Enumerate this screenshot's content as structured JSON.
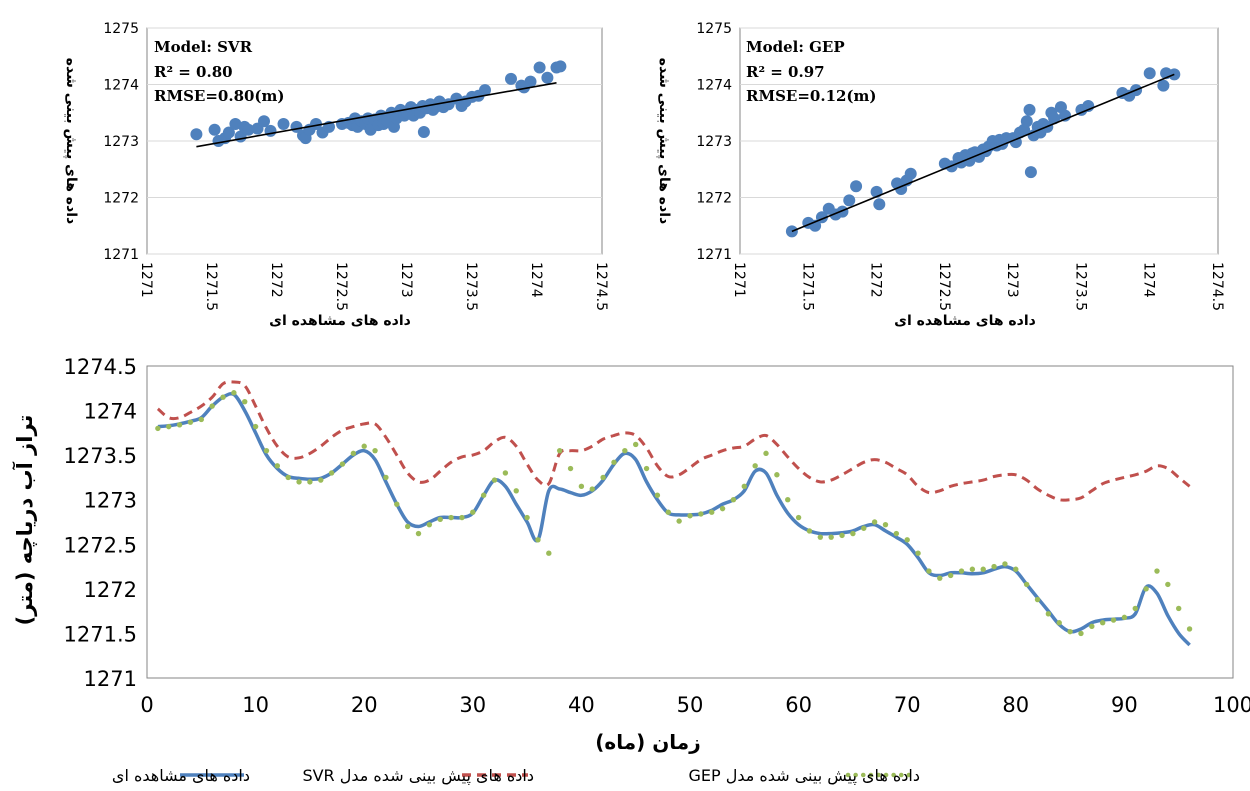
{
  "chart_data": [
    {
      "type": "scatter",
      "title": "",
      "xlabel": "داده های مشاهده ای",
      "ylabel": "داده های پیش بینی شده",
      "annotations": {
        "model": "Model: SVR",
        "r2": "R² = 0.80",
        "rmse": "RMSE=0.80(m)"
      },
      "xlim": [
        1271,
        1274.5
      ],
      "ylim": [
        1271,
        1275
      ],
      "x_ticks": [
        "1271",
        "1271.5",
        "1272",
        "1272.5",
        "1273",
        "1273.5",
        "1274",
        "1274.5"
      ],
      "y_ticks": [
        "1271",
        "1272",
        "1273",
        "1274",
        "1275"
      ],
      "point_color": "#4f81bd",
      "trendline": [
        [
          1271.38,
          1272.9
        ],
        [
          1274.15,
          1274.03
        ]
      ],
      "points": [
        [
          1271.38,
          1273.12
        ],
        [
          1271.52,
          1273.2
        ],
        [
          1271.55,
          1273.0
        ],
        [
          1271.6,
          1273.05
        ],
        [
          1271.63,
          1273.15
        ],
        [
          1271.68,
          1273.3
        ],
        [
          1271.72,
          1273.08
        ],
        [
          1271.75,
          1273.25
        ],
        [
          1271.78,
          1273.2
        ],
        [
          1271.85,
          1273.22
        ],
        [
          1271.9,
          1273.35
        ],
        [
          1271.95,
          1273.18
        ],
        [
          1272.05,
          1273.3
        ],
        [
          1272.15,
          1273.25
        ],
        [
          1272.2,
          1273.1
        ],
        [
          1272.22,
          1273.05
        ],
        [
          1272.25,
          1273.2
        ],
        [
          1272.3,
          1273.3
        ],
        [
          1272.35,
          1273.15
        ],
        [
          1272.4,
          1273.25
        ],
        [
          1272.5,
          1273.3
        ],
        [
          1272.55,
          1273.32
        ],
        [
          1272.58,
          1273.28
        ],
        [
          1272.6,
          1273.4
        ],
        [
          1272.62,
          1273.25
        ],
        [
          1272.65,
          1273.35
        ],
        [
          1272.68,
          1273.3
        ],
        [
          1272.7,
          1273.4
        ],
        [
          1272.72,
          1273.2
        ],
        [
          1272.75,
          1273.38
        ],
        [
          1272.78,
          1273.28
        ],
        [
          1272.8,
          1273.45
        ],
        [
          1272.82,
          1273.3
        ],
        [
          1272.85,
          1273.35
        ],
        [
          1272.88,
          1273.5
        ],
        [
          1272.9,
          1273.25
        ],
        [
          1272.92,
          1273.4
        ],
        [
          1272.95,
          1273.55
        ],
        [
          1272.98,
          1273.45
        ],
        [
          1273.0,
          1273.5
        ],
        [
          1273.03,
          1273.6
        ],
        [
          1273.05,
          1273.45
        ],
        [
          1273.08,
          1273.55
        ],
        [
          1273.1,
          1273.5
        ],
        [
          1273.12,
          1273.62
        ],
        [
          1273.15,
          1273.58
        ],
        [
          1273.18,
          1273.65
        ],
        [
          1273.2,
          1273.55
        ],
        [
          1273.22,
          1273.6
        ],
        [
          1273.25,
          1273.7
        ],
        [
          1273.28,
          1273.6
        ],
        [
          1273.32,
          1273.65
        ],
        [
          1273.38,
          1273.75
        ],
        [
          1273.42,
          1273.62
        ],
        [
          1273.45,
          1273.7
        ],
        [
          1273.5,
          1273.78
        ],
        [
          1273.55,
          1273.8
        ],
        [
          1273.6,
          1273.9
        ],
        [
          1273.13,
          1273.16
        ],
        [
          1273.8,
          1274.1
        ],
        [
          1273.88,
          1273.98
        ],
        [
          1273.9,
          1273.95
        ],
        [
          1273.95,
          1274.05
        ],
        [
          1274.02,
          1274.3
        ],
        [
          1274.08,
          1274.12
        ],
        [
          1274.15,
          1274.3
        ],
        [
          1274.18,
          1274.32
        ]
      ]
    },
    {
      "type": "scatter",
      "title": "",
      "xlabel": "داده های مشاهده ای",
      "ylabel": "داده های پیش بینی شده",
      "annotations": {
        "model": "Model: GEP",
        "r2": "R² = 0.97",
        "rmse": "RMSE=0.12(m)"
      },
      "xlim": [
        1271,
        1274.5
      ],
      "ylim": [
        1271,
        1275
      ],
      "x_ticks": [
        "1271",
        "1271.5",
        "1272",
        "1272.5",
        "1273",
        "1273.5",
        "1274",
        "1274.5"
      ],
      "y_ticks": [
        "1271",
        "1272",
        "1273",
        "1274",
        "1275"
      ],
      "point_color": "#4f81bd",
      "trendline": [
        [
          1271.38,
          1271.4
        ],
        [
          1274.18,
          1274.18
        ]
      ],
      "points": [
        [
          1271.38,
          1271.4
        ],
        [
          1271.5,
          1271.55
        ],
        [
          1271.55,
          1271.5
        ],
        [
          1271.6,
          1271.65
        ],
        [
          1271.65,
          1271.8
        ],
        [
          1271.7,
          1271.7
        ],
        [
          1271.75,
          1271.75
        ],
        [
          1271.8,
          1271.95
        ],
        [
          1271.85,
          1272.2
        ],
        [
          1272.0,
          1272.1
        ],
        [
          1272.02,
          1271.88
        ],
        [
          1272.15,
          1272.25
        ],
        [
          1272.18,
          1272.15
        ],
        [
          1272.22,
          1272.3
        ],
        [
          1272.25,
          1272.42
        ],
        [
          1272.5,
          1272.6
        ],
        [
          1272.55,
          1272.55
        ],
        [
          1272.6,
          1272.7
        ],
        [
          1272.62,
          1272.62
        ],
        [
          1272.65,
          1272.75
        ],
        [
          1272.68,
          1272.65
        ],
        [
          1272.7,
          1272.78
        ],
        [
          1272.72,
          1272.8
        ],
        [
          1272.75,
          1272.72
        ],
        [
          1272.78,
          1272.85
        ],
        [
          1272.8,
          1272.82
        ],
        [
          1272.82,
          1272.9
        ],
        [
          1272.85,
          1273.0
        ],
        [
          1272.88,
          1272.92
        ],
        [
          1272.9,
          1273.02
        ],
        [
          1272.92,
          1272.95
        ],
        [
          1272.95,
          1273.05
        ],
        [
          1273.0,
          1273.05
        ],
        [
          1273.02,
          1272.98
        ],
        [
          1273.05,
          1273.15
        ],
        [
          1273.08,
          1273.2
        ],
        [
          1273.1,
          1273.35
        ],
        [
          1273.12,
          1273.55
        ],
        [
          1273.13,
          1272.45
        ],
        [
          1273.15,
          1273.1
        ],
        [
          1273.18,
          1273.25
        ],
        [
          1273.2,
          1273.15
        ],
        [
          1273.22,
          1273.3
        ],
        [
          1273.25,
          1273.25
        ],
        [
          1273.28,
          1273.5
        ],
        [
          1273.3,
          1273.4
        ],
        [
          1273.35,
          1273.6
        ],
        [
          1273.38,
          1273.45
        ],
        [
          1273.5,
          1273.55
        ],
        [
          1273.55,
          1273.62
        ],
        [
          1273.8,
          1273.85
        ],
        [
          1273.85,
          1273.8
        ],
        [
          1273.9,
          1273.9
        ],
        [
          1274.0,
          1274.2
        ],
        [
          1274.1,
          1273.98
        ],
        [
          1274.12,
          1274.2
        ],
        [
          1274.18,
          1274.18
        ]
      ]
    },
    {
      "type": "line",
      "title": "",
      "xlabel": "زمان (ماه)",
      "ylabel": "تراز آب دریاچه (متر)",
      "xlim": [
        0,
        100
      ],
      "ylim": [
        1271,
        1274.5
      ],
      "x_ticks": [
        "0",
        "10",
        "20",
        "30",
        "40",
        "50",
        "60",
        "70",
        "80",
        "90",
        "100"
      ],
      "y_ticks": [
        "1271",
        "1271.5",
        "1272",
        "1272.5",
        "1273",
        "1273.5",
        "1274",
        "1274.5"
      ],
      "x": [
        1,
        2,
        3,
        4,
        5,
        6,
        7,
        8,
        9,
        10,
        11,
        12,
        13,
        14,
        15,
        16,
        17,
        18,
        19,
        20,
        21,
        22,
        23,
        24,
        25,
        26,
        27,
        28,
        29,
        30,
        31,
        32,
        33,
        34,
        35,
        36,
        37,
        38,
        39,
        40,
        41,
        42,
        43,
        44,
        45,
        46,
        47,
        48,
        49,
        50,
        51,
        52,
        53,
        54,
        55,
        56,
        57,
        58,
        59,
        60,
        61,
        62,
        63,
        64,
        65,
        66,
        67,
        68,
        69,
        70,
        71,
        72,
        73,
        74,
        75,
        76,
        77,
        78,
        79,
        80,
        81,
        82,
        83,
        84,
        85,
        86,
        87,
        88,
        89,
        90,
        91,
        92,
        93,
        94,
        95,
        96
      ],
      "series": [
        {
          "name": "داده های مشاهده ای",
          "color": "#4f81bd",
          "style": "solid",
          "values": [
            1273.82,
            1273.83,
            1273.85,
            1273.88,
            1273.92,
            1274.05,
            1274.15,
            1274.18,
            1274.0,
            1273.75,
            1273.5,
            1273.35,
            1273.26,
            1273.24,
            1273.23,
            1273.24,
            1273.3,
            1273.4,
            1273.5,
            1273.55,
            1273.45,
            1273.2,
            1272.95,
            1272.75,
            1272.7,
            1272.75,
            1272.8,
            1272.8,
            1272.8,
            1272.85,
            1273.05,
            1273.22,
            1273.15,
            1272.95,
            1272.75,
            1272.55,
            1273.1,
            1273.12,
            1273.08,
            1273.05,
            1273.1,
            1273.22,
            1273.4,
            1273.52,
            1273.45,
            1273.2,
            1273.0,
            1272.85,
            1272.83,
            1272.83,
            1272.84,
            1272.88,
            1272.95,
            1273.0,
            1273.1,
            1273.32,
            1273.3,
            1273.05,
            1272.85,
            1272.72,
            1272.65,
            1272.62,
            1272.62,
            1272.63,
            1272.65,
            1272.7,
            1272.72,
            1272.65,
            1272.58,
            1272.5,
            1272.35,
            1272.18,
            1272.15,
            1272.18,
            1272.18,
            1272.17,
            1272.18,
            1272.22,
            1272.25,
            1272.2,
            1272.05,
            1271.9,
            1271.75,
            1271.6,
            1271.52,
            1271.55,
            1271.62,
            1271.65,
            1271.66,
            1271.67,
            1271.72,
            1272.02,
            1271.95,
            1271.7,
            1271.5,
            1271.37
          ]
        },
        {
          "name": "داده های پیش بینی شده مدل SVR",
          "color": "#c0504d",
          "style": "dashed",
          "values": [
            1274.02,
            1273.92,
            1273.92,
            1273.98,
            1274.05,
            1274.15,
            1274.3,
            1274.32,
            1274.28,
            1274.05,
            1273.8,
            1273.6,
            1273.48,
            1273.47,
            1273.52,
            1273.6,
            1273.7,
            1273.78,
            1273.82,
            1273.85,
            1273.85,
            1273.7,
            1273.5,
            1273.3,
            1273.2,
            1273.22,
            1273.32,
            1273.42,
            1273.48,
            1273.5,
            1273.55,
            1273.65,
            1273.7,
            1273.6,
            1273.4,
            1273.22,
            1273.18,
            1273.52,
            1273.55,
            1273.55,
            1273.6,
            1273.68,
            1273.72,
            1273.75,
            1273.72,
            1273.58,
            1273.38,
            1273.26,
            1273.28,
            1273.36,
            1273.45,
            1273.5,
            1273.55,
            1273.58,
            1273.6,
            1273.68,
            1273.72,
            1273.62,
            1273.48,
            1273.35,
            1273.25,
            1273.2,
            1273.22,
            1273.28,
            1273.35,
            1273.42,
            1273.45,
            1273.42,
            1273.35,
            1273.28,
            1273.15,
            1273.08,
            1273.1,
            1273.15,
            1273.18,
            1273.2,
            1273.22,
            1273.26,
            1273.28,
            1273.28,
            1273.22,
            1273.12,
            1273.05,
            1273.0,
            1273.0,
            1273.02,
            1273.1,
            1273.18,
            1273.22,
            1273.25,
            1273.28,
            1273.32,
            1273.38,
            1273.35,
            1273.25,
            1273.15
          ]
        },
        {
          "name": "داده های پیش بینی شده مدل GEP",
          "color": "#9bbb59",
          "style": "dotted",
          "values": [
            1273.8,
            1273.82,
            1273.84,
            1273.87,
            1273.9,
            1274.05,
            1274.15,
            1274.2,
            1274.1,
            1273.82,
            1273.55,
            1273.38,
            1273.25,
            1273.2,
            1273.2,
            1273.22,
            1273.3,
            1273.4,
            1273.52,
            1273.6,
            1273.55,
            1273.25,
            1272.95,
            1272.7,
            1272.62,
            1272.72,
            1272.78,
            1272.8,
            1272.8,
            1272.86,
            1273.05,
            1273.22,
            1273.3,
            1273.1,
            1272.8,
            1272.55,
            1272.4,
            1273.55,
            1273.35,
            1273.15,
            1273.12,
            1273.25,
            1273.42,
            1273.55,
            1273.62,
            1273.35,
            1273.05,
            1272.86,
            1272.76,
            1272.82,
            1272.84,
            1272.86,
            1272.9,
            1273.0,
            1273.15,
            1273.38,
            1273.52,
            1273.28,
            1273.0,
            1272.8,
            1272.65,
            1272.58,
            1272.58,
            1272.6,
            1272.62,
            1272.68,
            1272.75,
            1272.72,
            1272.62,
            1272.55,
            1272.4,
            1272.2,
            1272.12,
            1272.15,
            1272.2,
            1272.22,
            1272.22,
            1272.25,
            1272.28,
            1272.22,
            1272.05,
            1271.88,
            1271.72,
            1271.62,
            1271.52,
            1271.5,
            1271.58,
            1271.62,
            1271.65,
            1271.68,
            1271.78,
            1272.0,
            1272.2,
            1272.05,
            1271.78,
            1271.55
          ]
        }
      ]
    }
  ]
}
